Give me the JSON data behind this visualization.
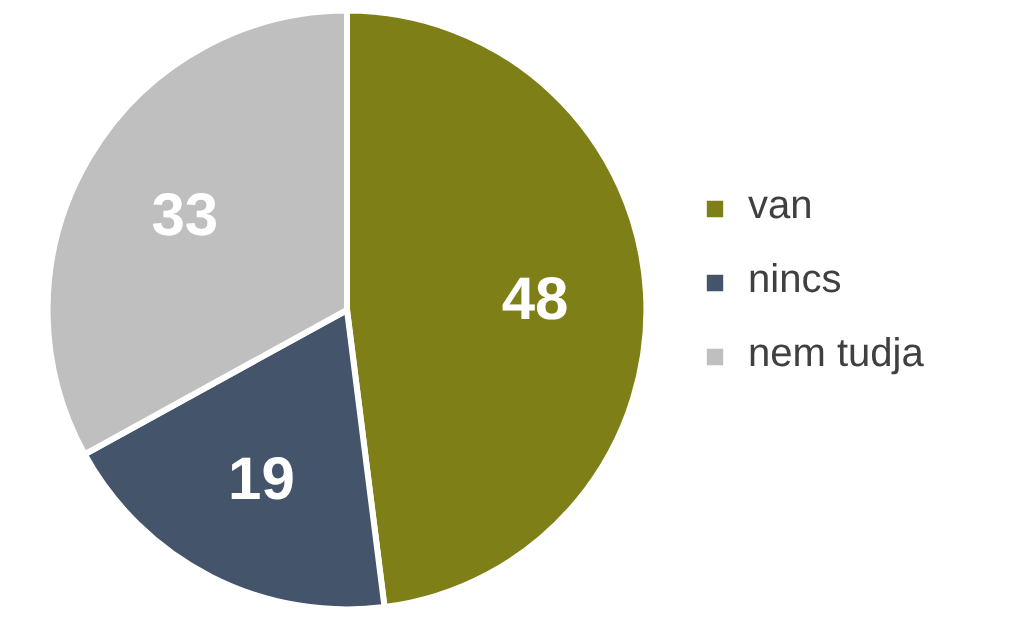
{
  "chart_data": {
    "type": "pie",
    "categories": [
      "van",
      "nincs",
      "nem tudja"
    ],
    "values": [
      48,
      19,
      33
    ],
    "colors": [
      "#7f7f17",
      "#44546a",
      "#bfbfbf"
    ],
    "data_labels": true,
    "legend": "right"
  }
}
